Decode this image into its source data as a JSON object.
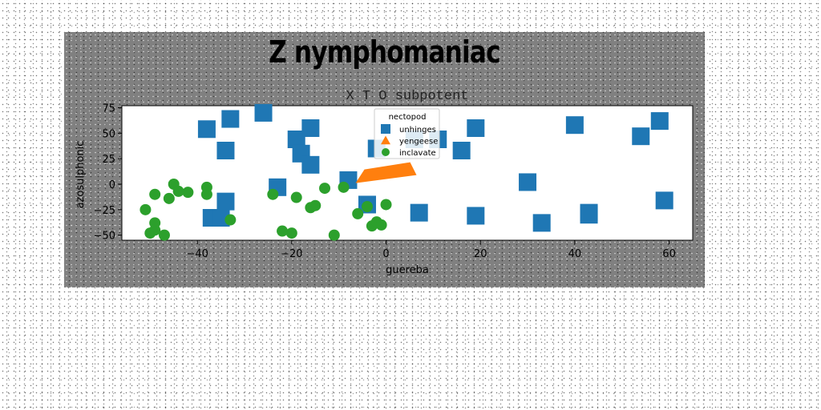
{
  "page": {
    "suptitle": "Z nymphomaniac"
  },
  "chart_data": {
    "type": "scatter",
    "title": "X T O subpotent",
    "xlabel": "guereba",
    "ylabel": "azosulphonic",
    "xlim": [
      -56,
      65
    ],
    "ylim": [
      -55,
      77
    ],
    "xticks": [
      -40,
      -20,
      0,
      20,
      40,
      60
    ],
    "xtick_labels": [
      "−40",
      "−20",
      "0",
      "20",
      "40",
      "60"
    ],
    "yticks": [
      -50,
      -25,
      0,
      25,
      50,
      75
    ],
    "ytick_labels": [
      "−50",
      "−25",
      "0",
      "25",
      "50",
      "75"
    ],
    "legend": {
      "title": "nectopod",
      "placement": "upper-center"
    },
    "series": [
      {
        "name": "unhinges",
        "marker": "square",
        "color": "#1f77b4",
        "points": [
          [
            -38,
            54
          ],
          [
            -33,
            64
          ],
          [
            -34,
            33
          ],
          [
            -26,
            70
          ],
          [
            -19,
            44
          ],
          [
            -16,
            55
          ],
          [
            -18,
            30
          ],
          [
            -16,
            19
          ],
          [
            -23,
            -3
          ],
          [
            -34,
            -17
          ],
          [
            -37,
            -33
          ],
          [
            -35,
            -33
          ],
          [
            -8,
            4
          ],
          [
            -4,
            -20
          ],
          [
            -2,
            35
          ],
          [
            6,
            44
          ],
          [
            11,
            44
          ],
          [
            16,
            33
          ],
          [
            19,
            55
          ],
          [
            7,
            -28
          ],
          [
            19,
            -31
          ],
          [
            30,
            2
          ],
          [
            33,
            -38
          ],
          [
            43,
            -28
          ],
          [
            43,
            -30
          ],
          [
            40,
            58
          ],
          [
            54,
            47
          ],
          [
            58,
            62
          ],
          [
            59,
            -16
          ]
        ]
      },
      {
        "name": "yengeese",
        "marker": "triangle",
        "color": "#ff7f0e",
        "points": [
          [
            0,
            5
          ]
        ]
      },
      {
        "name": "inclavate",
        "marker": "circle",
        "color": "#2ca02c",
        "points": [
          [
            -51,
            -25
          ],
          [
            -50,
            -48
          ],
          [
            -49,
            -45
          ],
          [
            -49,
            -38
          ],
          [
            -49,
            -10
          ],
          [
            -47,
            -50
          ],
          [
            -46,
            -14
          ],
          [
            -45,
            0
          ],
          [
            -44,
            -7
          ],
          [
            -42,
            -8
          ],
          [
            -38,
            -3
          ],
          [
            -38,
            -10
          ],
          [
            -33,
            -35
          ],
          [
            -24,
            -10
          ],
          [
            -22,
            -46
          ],
          [
            -20,
            -48
          ],
          [
            -19,
            -13
          ],
          [
            -16,
            -23
          ],
          [
            -15,
            -21
          ],
          [
            -13,
            -4
          ],
          [
            -11,
            -50
          ],
          [
            -9,
            -3
          ],
          [
            -6,
            -29
          ],
          [
            -4,
            -22
          ],
          [
            -3,
            -41
          ],
          [
            -2,
            -37
          ],
          [
            -1,
            -40
          ],
          [
            0,
            -20
          ]
        ]
      }
    ]
  }
}
